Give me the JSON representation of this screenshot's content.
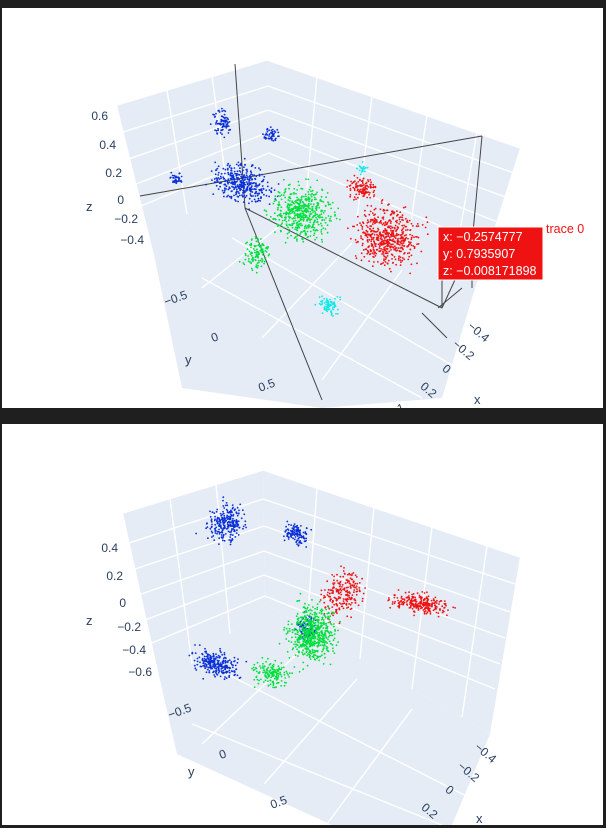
{
  "chart_data": [
    {
      "type": "scatter3d",
      "xlabel": "x",
      "ylabel": "y",
      "zlabel": "z",
      "x_ticks": [
        "−0.4",
        "−0.2",
        "0",
        "0.2",
        "0.4"
      ],
      "y_ticks": [
        "−0.5",
        "0",
        "0.5",
        "1"
      ],
      "z_ticks": [
        "0.6",
        "0.4",
        "0.2",
        "0",
        "−0.2",
        "−0.4"
      ],
      "colors": {
        "blue": "#0a2fd6",
        "green": "#00e03c",
        "red": "#ef1212",
        "cyan": "#10e8e8",
        "pane": "#e5ecf6",
        "grid": "#ffffff",
        "tick": "#2a3f5f"
      },
      "series": [
        {
          "color": "#0a2fd6",
          "x": [
            0.05,
            0.45
          ],
          "y": [
            -0.7,
            -0.1
          ],
          "z": [
            -0.4,
            0.65
          ]
        },
        {
          "color": "#00e03c",
          "x": [
            -0.3,
            0.5
          ],
          "y": [
            -0.2,
            0.5
          ],
          "z": [
            -0.35,
            0.3
          ]
        },
        {
          "color": "#ef1212",
          "x": [
            -0.45,
            0.4
          ],
          "y": [
            0.2,
            1.0
          ],
          "z": [
            -0.35,
            0.3
          ]
        },
        {
          "color": "#10e8e8",
          "x": [
            0.1,
            0.5
          ],
          "y": [
            0.4,
            0.9
          ],
          "z": [
            -0.5,
            0.2
          ]
        }
      ],
      "hover": {
        "x_text": "x: −0.2574777",
        "y_text": "y: 0.7935907",
        "z_text": "z: −0.008171898",
        "trace_name": "trace 0",
        "color": "#ef1212"
      }
    },
    {
      "type": "scatter3d",
      "xlabel": "x",
      "ylabel": "y",
      "zlabel": "z",
      "x_ticks": [
        "−0.4",
        "−0.2",
        "0",
        "0.2"
      ],
      "y_ticks": [
        "−0.5",
        "0",
        "0.5"
      ],
      "z_ticks": [
        "0.4",
        "0.2",
        "0",
        "−0.2",
        "−0.4",
        "−0.6"
      ],
      "colors": {
        "blue": "#0a2fd6",
        "green": "#00e03c",
        "red": "#ef1212",
        "pane": "#e5ecf6",
        "grid": "#ffffff",
        "tick": "#2a3f5f"
      },
      "series": [
        {
          "color": "#0a2fd6",
          "x": [
            -0.2,
            0.4
          ],
          "y": [
            -0.7,
            0.3
          ],
          "z": [
            -0.6,
            0.5
          ]
        },
        {
          "color": "#00e03c",
          "x": [
            -0.2,
            0.4
          ],
          "y": [
            -0.2,
            0.5
          ],
          "z": [
            -0.6,
            0.2
          ]
        },
        {
          "color": "#ef1212",
          "x": [
            -0.4,
            0.2
          ],
          "y": [
            0.1,
            0.9
          ],
          "z": [
            -0.2,
            0.3
          ]
        }
      ]
    }
  ]
}
